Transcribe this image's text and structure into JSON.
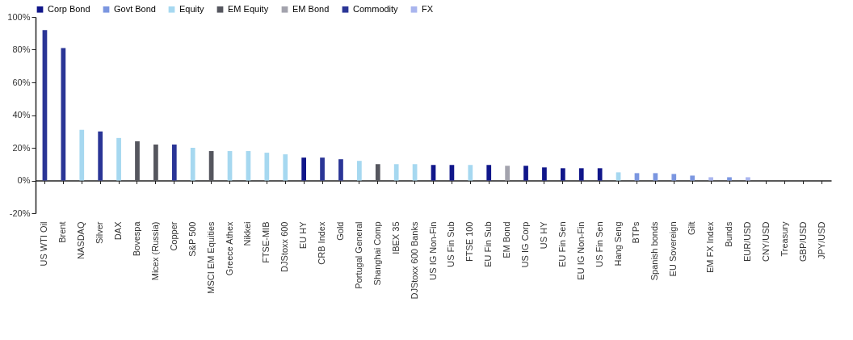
{
  "chart_data": {
    "type": "bar",
    "categories": [
      "US WTI Oil",
      "Brent",
      "NASDAQ",
      "Silver",
      "DAX",
      "Bovespa",
      "Micex (Russia)",
      "Copper",
      "S&P 500",
      "MSCI EM Equities",
      "Greece Athex",
      "Nikkei",
      "FTSE-MIB",
      "DJStoxx 600",
      "EU HY",
      "CRB Index",
      "Gold",
      "Portugal General",
      "Shanghai Comp",
      "IBEX 35",
      "DJStoxx 600 Banks",
      "US IG Non-Fin",
      "US Fin Sub",
      "FTSE 100",
      "EU Fin Sub",
      "EM Bond",
      "US IG Corp",
      "US HY",
      "EU Fin Sen",
      "EU IG Non-Fin",
      "US Fin Sen",
      "Hang Seng",
      "BTPs",
      "Spanish bonds",
      "EU Sovereign",
      "Gilt",
      "EM FX Index",
      "Bunds",
      "EUR/USD",
      "CNY/USD",
      "Treasury",
      "GBP/USD",
      "JPY/USD"
    ],
    "series": [
      {
        "name": "Corp Bond",
        "color": "#10168a",
        "values": [
          null,
          null,
          null,
          null,
          null,
          null,
          null,
          null,
          null,
          null,
          null,
          null,
          null,
          null,
          14,
          null,
          null,
          null,
          null,
          null,
          null,
          9.5,
          9.5,
          null,
          9.5,
          null,
          9,
          8,
          7.5,
          7.5,
          7.5,
          null,
          null,
          null,
          null,
          null,
          null,
          null,
          null,
          null,
          null,
          null,
          null
        ]
      },
      {
        "name": "Govt Bond",
        "color": "#7b96e0",
        "values": [
          null,
          null,
          null,
          null,
          null,
          null,
          null,
          null,
          null,
          null,
          null,
          null,
          null,
          null,
          null,
          null,
          null,
          null,
          null,
          null,
          null,
          null,
          null,
          null,
          null,
          null,
          null,
          null,
          null,
          null,
          null,
          null,
          4.5,
          4.5,
          4,
          3,
          null,
          2,
          null,
          null,
          0,
          null,
          null
        ]
      },
      {
        "name": "Equity",
        "color": "#a6d8f0",
        "values": [
          null,
          null,
          31,
          null,
          26,
          null,
          null,
          null,
          20,
          null,
          18,
          18,
          17,
          16,
          null,
          null,
          null,
          12,
          null,
          10,
          10,
          null,
          null,
          9.5,
          null,
          null,
          null,
          null,
          null,
          null,
          null,
          5,
          null,
          null,
          null,
          null,
          null,
          null,
          null,
          null,
          null,
          null,
          null
        ]
      },
      {
        "name": "EM Equity",
        "color": "#55565e",
        "values": [
          null,
          null,
          null,
          null,
          null,
          24,
          22,
          null,
          null,
          18,
          null,
          null,
          null,
          null,
          null,
          null,
          null,
          null,
          10,
          null,
          null,
          null,
          null,
          null,
          null,
          null,
          null,
          null,
          null,
          null,
          null,
          null,
          null,
          null,
          null,
          null,
          null,
          null,
          null,
          null,
          null,
          null,
          null
        ]
      },
      {
        "name": "EM Bond",
        "color": "#a3a3ad",
        "values": [
          null,
          null,
          null,
          null,
          null,
          null,
          null,
          null,
          null,
          null,
          null,
          null,
          null,
          null,
          null,
          null,
          null,
          null,
          null,
          null,
          null,
          null,
          null,
          null,
          null,
          9,
          null,
          null,
          null,
          null,
          null,
          null,
          null,
          null,
          null,
          null,
          null,
          null,
          null,
          null,
          null,
          null,
          null
        ]
      },
      {
        "name": "Commodity",
        "color": "#2a3596",
        "values": [
          92,
          81,
          null,
          30,
          null,
          null,
          null,
          22,
          null,
          null,
          null,
          null,
          null,
          null,
          null,
          14,
          13,
          null,
          null,
          null,
          null,
          null,
          null,
          null,
          null,
          null,
          null,
          null,
          null,
          null,
          null,
          null,
          null,
          null,
          null,
          null,
          null,
          null,
          null,
          null,
          null,
          null,
          null
        ]
      },
      {
        "name": "FX",
        "color": "#a9b5ee",
        "values": [
          null,
          null,
          null,
          null,
          null,
          null,
          null,
          null,
          null,
          null,
          null,
          null,
          null,
          null,
          null,
          null,
          null,
          null,
          null,
          null,
          null,
          null,
          null,
          null,
          null,
          null,
          null,
          null,
          null,
          null,
          null,
          null,
          null,
          null,
          null,
          null,
          2,
          null,
          2,
          0,
          null,
          0,
          0
        ]
      }
    ],
    "ylim": [
      -20,
      100
    ],
    "yticks": [
      {
        "value": -20,
        "label": "-20%"
      },
      {
        "value": 0,
        "label": "0%"
      },
      {
        "value": 20,
        "label": "20%"
      },
      {
        "value": 40,
        "label": "40%"
      },
      {
        "value": 60,
        "label": "60%"
      },
      {
        "value": 80,
        "label": "80%"
      },
      {
        "value": 100,
        "label": "100%"
      }
    ],
    "legend": "top"
  }
}
